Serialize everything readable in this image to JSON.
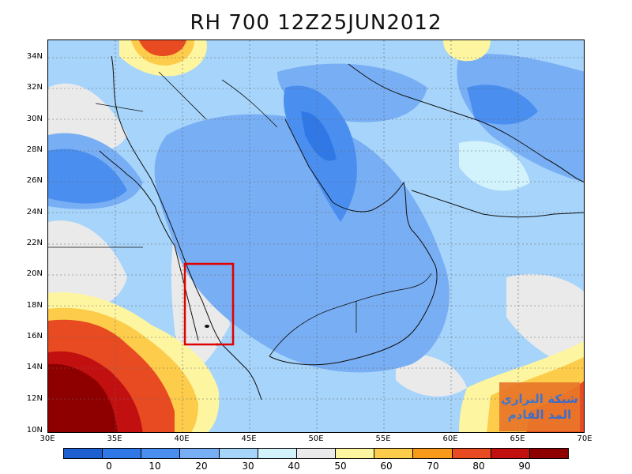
{
  "title": "RH 700 12Z25JUN2012",
  "map": {
    "lat_labels": [
      "34N",
      "32N",
      "30N",
      "28N",
      "26N",
      "24N",
      "22N",
      "20N",
      "18N",
      "16N",
      "14N",
      "12N",
      "10N"
    ],
    "lon_labels": [
      "30E",
      "35E",
      "40E",
      "45E",
      "50E",
      "55E",
      "60E",
      "65E",
      "70E"
    ],
    "highlight_box_color": "#e00000"
  },
  "colorbar": {
    "colors": [
      "#1e5fd0",
      "#2f78e6",
      "#4a8ff0",
      "#78aef4",
      "#a6d4fa",
      "#d2f2fc",
      "#eaeaea",
      "#fdf5a0",
      "#fccc4a",
      "#f79a1a",
      "#e84a22",
      "#c21010",
      "#8e0000"
    ],
    "labels": [
      "0",
      "10",
      "20",
      "30",
      "40",
      "50",
      "60",
      "70",
      "80",
      "90"
    ]
  },
  "watermark": {
    "line1": "شبكة البراري",
    "line2": "المد القادم"
  }
}
